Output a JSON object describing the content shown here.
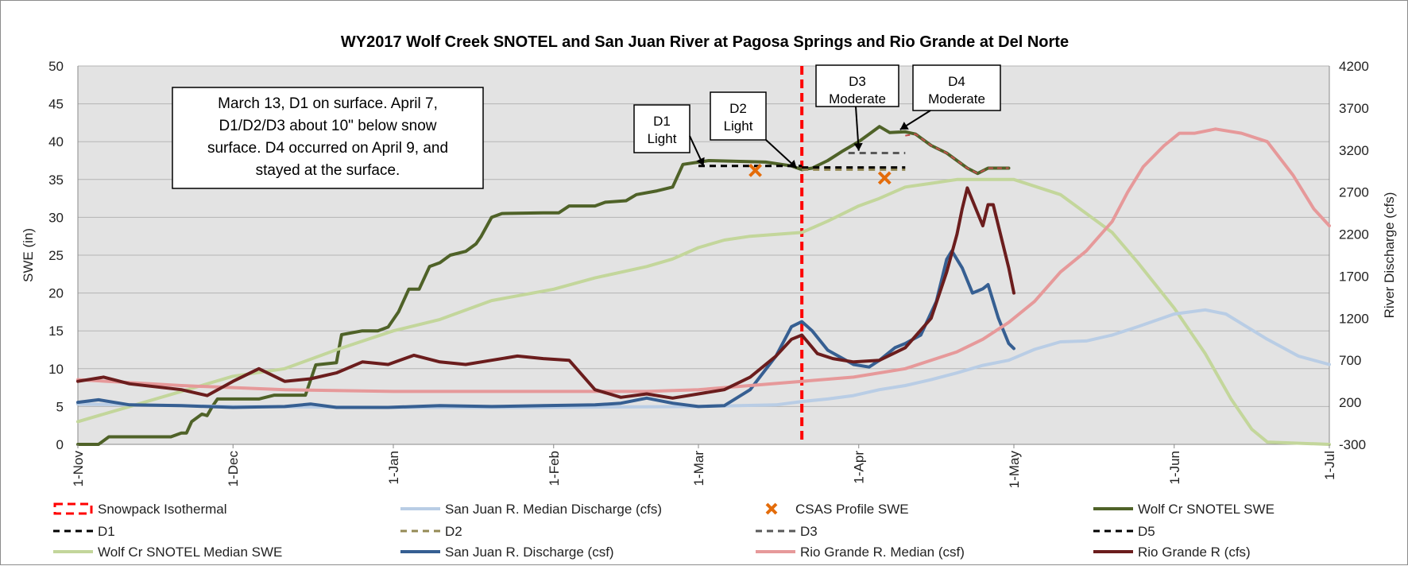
{
  "chart_data": {
    "type": "line",
    "title": "WY2017 Wolf Creek SNOTEL and San Juan River at Pagosa Springs and Rio Grande at Del Norte",
    "ylabel_left": "SWE (in)",
    "ylabel_right": "River Discharge (cfs)",
    "ylim_left": [
      0,
      50
    ],
    "ylim_right": [
      -300,
      4200
    ],
    "yticks_left": [
      "0",
      "5",
      "10",
      "15",
      "20",
      "25",
      "30",
      "35",
      "40",
      "45",
      "50"
    ],
    "yticks_right": [
      "-300",
      "200",
      "700",
      "1200",
      "1700",
      "2200",
      "2700",
      "3200",
      "3700",
      "4200"
    ],
    "x_tick_labels": [
      "1-Nov",
      "1-Dec",
      "1-Jan",
      "1-Feb",
      "1-Mar",
      "1-Apr",
      "1-May",
      "1-Jun",
      "1-Jul"
    ],
    "x_tick_days": [
      0,
      30,
      61,
      92,
      120,
      151,
      181,
      212,
      242
    ],
    "x_range_days": [
      0,
      242
    ],
    "grid": true,
    "isothermal_day": 140,
    "series": [
      {
        "name": "Wolf Cr SNOTEL SWE",
        "axis": "left",
        "color": "#4f6228",
        "width": 4,
        "dash": "",
        "points": [
          [
            0,
            0
          ],
          [
            4,
            0
          ],
          [
            6,
            1
          ],
          [
            10,
            1
          ],
          [
            18,
            1
          ],
          [
            20,
            1.5
          ],
          [
            21,
            1.5
          ],
          [
            22,
            3
          ],
          [
            24,
            4
          ],
          [
            25,
            3.8
          ],
          [
            26,
            5
          ],
          [
            27,
            6
          ],
          [
            35,
            6
          ],
          [
            38,
            6.5
          ],
          [
            44,
            6.5
          ],
          [
            46,
            10.5
          ],
          [
            50,
            10.8
          ],
          [
            51,
            14.5
          ],
          [
            55,
            15
          ],
          [
            58,
            15
          ],
          [
            60,
            15.5
          ],
          [
            62,
            17.5
          ],
          [
            64,
            20.5
          ],
          [
            66,
            20.5
          ],
          [
            68,
            23.5
          ],
          [
            70,
            24
          ],
          [
            72,
            25
          ],
          [
            75,
            25.5
          ],
          [
            77,
            26.5
          ],
          [
            78,
            27.5
          ],
          [
            80,
            30
          ],
          [
            82,
            30.5
          ],
          [
            90,
            30.6
          ],
          [
            93,
            30.6
          ],
          [
            95,
            31.5
          ],
          [
            100,
            31.5
          ],
          [
            102,
            32
          ],
          [
            106,
            32.2
          ],
          [
            108,
            33
          ],
          [
            112,
            33.5
          ],
          [
            115,
            34
          ],
          [
            117,
            37
          ],
          [
            122,
            37.5
          ],
          [
            128,
            37.4
          ],
          [
            133,
            37.3
          ],
          [
            138,
            36.8
          ],
          [
            140,
            36.3
          ],
          [
            142,
            36.5
          ],
          [
            145,
            37.5
          ],
          [
            148,
            38.8
          ],
          [
            151,
            40
          ],
          [
            153,
            41
          ],
          [
            155,
            42
          ],
          [
            157,
            41.2
          ],
          [
            160,
            41.3
          ],
          [
            162,
            41
          ],
          [
            165,
            39.5
          ],
          [
            168,
            38.5
          ],
          [
            170,
            37.5
          ],
          [
            172,
            36.5
          ],
          [
            174,
            35.8
          ],
          [
            176,
            36.5
          ],
          [
            180,
            36.5
          ]
        ]
      },
      {
        "name": "Wolf Cr SNOTEL Median SWE",
        "axis": "left",
        "color": "#c3d69b",
        "width": 4,
        "dash": "",
        "points": [
          [
            0,
            3
          ],
          [
            10,
            5
          ],
          [
            20,
            7
          ],
          [
            30,
            9
          ],
          [
            40,
            10
          ],
          [
            50,
            12.5
          ],
          [
            61,
            15
          ],
          [
            70,
            16.5
          ],
          [
            80,
            19
          ],
          [
            92,
            20.5
          ],
          [
            100,
            22
          ],
          [
            110,
            23.5
          ],
          [
            115,
            24.5
          ],
          [
            120,
            26
          ],
          [
            125,
            27
          ],
          [
            130,
            27.5
          ],
          [
            140,
            28
          ],
          [
            145,
            29.5
          ],
          [
            151,
            31.5
          ],
          [
            155,
            32.5
          ],
          [
            160,
            34
          ],
          [
            165,
            34.5
          ],
          [
            170,
            35
          ],
          [
            175,
            35
          ],
          [
            181,
            35
          ],
          [
            190,
            33
          ],
          [
            200,
            28
          ],
          [
            205,
            24
          ],
          [
            212,
            18
          ],
          [
            218,
            12
          ],
          [
            223,
            6
          ],
          [
            227,
            2
          ],
          [
            230,
            0.3
          ],
          [
            242,
            0
          ]
        ]
      },
      {
        "name": "San Juan R. Median Discharge (cfs)",
        "axis": "right",
        "color": "#b9cde5",
        "width": 4,
        "dash": "",
        "points": [
          [
            0,
            180
          ],
          [
            30,
            150
          ],
          [
            60,
            140
          ],
          [
            90,
            140
          ],
          [
            120,
            150
          ],
          [
            135,
            170
          ],
          [
            140,
            210
          ],
          [
            145,
            240
          ],
          [
            150,
            280
          ],
          [
            155,
            350
          ],
          [
            160,
            400
          ],
          [
            165,
            470
          ],
          [
            170,
            550
          ],
          [
            175,
            640
          ],
          [
            180,
            700
          ],
          [
            185,
            830
          ],
          [
            190,
            920
          ],
          [
            195,
            930
          ],
          [
            200,
            1000
          ],
          [
            205,
            1100
          ],
          [
            212,
            1250
          ],
          [
            218,
            1300
          ],
          [
            222,
            1250
          ],
          [
            226,
            1100
          ],
          [
            230,
            950
          ],
          [
            236,
            750
          ],
          [
            242,
            650
          ]
        ]
      },
      {
        "name": "San Juan R. Discharge (csf)",
        "axis": "right",
        "color": "#365f92",
        "width": 4,
        "dash": "",
        "points": [
          [
            0,
            200
          ],
          [
            4,
            230
          ],
          [
            10,
            170
          ],
          [
            20,
            160
          ],
          [
            30,
            140
          ],
          [
            40,
            150
          ],
          [
            45,
            180
          ],
          [
            50,
            140
          ],
          [
            60,
            140
          ],
          [
            70,
            160
          ],
          [
            80,
            150
          ],
          [
            90,
            160
          ],
          [
            100,
            170
          ],
          [
            105,
            190
          ],
          [
            110,
            250
          ],
          [
            115,
            190
          ],
          [
            120,
            150
          ],
          [
            125,
            160
          ],
          [
            130,
            350
          ],
          [
            135,
            750
          ],
          [
            138,
            1100
          ],
          [
            140,
            1160
          ],
          [
            142,
            1050
          ],
          [
            145,
            820
          ],
          [
            150,
            650
          ],
          [
            153,
            620
          ],
          [
            155,
            700
          ],
          [
            158,
            850
          ],
          [
            160,
            900
          ],
          [
            163,
            1000
          ],
          [
            166,
            1400
          ],
          [
            168,
            1900
          ],
          [
            169,
            2000
          ],
          [
            171,
            1800
          ],
          [
            173,
            1500
          ],
          [
            175,
            1550
          ],
          [
            176,
            1600
          ],
          [
            178,
            1200
          ],
          [
            180,
            900
          ],
          [
            181,
            840
          ]
        ]
      },
      {
        "name": "Rio Grande R. Median (csf)",
        "axis": "right",
        "color": "#e6999a",
        "width": 4,
        "dash": "",
        "points": [
          [
            0,
            470
          ],
          [
            20,
            400
          ],
          [
            40,
            350
          ],
          [
            61,
            330
          ],
          [
            90,
            330
          ],
          [
            110,
            330
          ],
          [
            120,
            350
          ],
          [
            130,
            400
          ],
          [
            140,
            450
          ],
          [
            150,
            500
          ],
          [
            160,
            600
          ],
          [
            170,
            800
          ],
          [
            175,
            950
          ],
          [
            180,
            1150
          ],
          [
            185,
            1400
          ],
          [
            190,
            1750
          ],
          [
            195,
            2000
          ],
          [
            200,
            2350
          ],
          [
            203,
            2700
          ],
          [
            206,
            3000
          ],
          [
            210,
            3250
          ],
          [
            213,
            3400
          ],
          [
            216,
            3400
          ],
          [
            220,
            3450
          ],
          [
            225,
            3400
          ],
          [
            230,
            3300
          ],
          [
            235,
            2900
          ],
          [
            239,
            2500
          ],
          [
            242,
            2300
          ]
        ]
      },
      {
        "name": "Rio Grande R (cfs)",
        "axis": "right",
        "color": "#6b1d1d",
        "width": 4,
        "dash": "",
        "points": [
          [
            0,
            450
          ],
          [
            5,
            500
          ],
          [
            10,
            420
          ],
          [
            20,
            350
          ],
          [
            25,
            280
          ],
          [
            30,
            450
          ],
          [
            35,
            600
          ],
          [
            40,
            450
          ],
          [
            45,
            480
          ],
          [
            50,
            550
          ],
          [
            55,
            680
          ],
          [
            60,
            650
          ],
          [
            65,
            760
          ],
          [
            70,
            680
          ],
          [
            75,
            650
          ],
          [
            80,
            700
          ],
          [
            85,
            750
          ],
          [
            90,
            720
          ],
          [
            95,
            700
          ],
          [
            100,
            350
          ],
          [
            105,
            260
          ],
          [
            110,
            300
          ],
          [
            115,
            250
          ],
          [
            120,
            300
          ],
          [
            125,
            350
          ],
          [
            130,
            500
          ],
          [
            135,
            750
          ],
          [
            138,
            950
          ],
          [
            140,
            1000
          ],
          [
            143,
            780
          ],
          [
            146,
            720
          ],
          [
            150,
            680
          ],
          [
            155,
            700
          ],
          [
            160,
            850
          ],
          [
            165,
            1200
          ],
          [
            168,
            1750
          ],
          [
            170,
            2200
          ],
          [
            171,
            2500
          ],
          [
            172,
            2750
          ],
          [
            174,
            2450
          ],
          [
            175,
            2300
          ],
          [
            176,
            2550
          ],
          [
            177,
            2550
          ],
          [
            178,
            2300
          ],
          [
            180,
            1800
          ],
          [
            181,
            1500
          ]
        ]
      },
      {
        "name": "D1",
        "axis": "left",
        "color": "#000000",
        "width": 3,
        "dash": "8,6",
        "points": [
          [
            120,
            36.8
          ],
          [
            140,
            36.8
          ]
        ]
      },
      {
        "name": "D2",
        "axis": "left",
        "color": "#948a54",
        "width": 3,
        "dash": "8,6",
        "points": [
          [
            140,
            36.3
          ],
          [
            160,
            36.3
          ]
        ]
      },
      {
        "name": "D3",
        "axis": "left",
        "color": "#595959",
        "width": 3,
        "dash": "8,6",
        "points": [
          [
            149,
            38.5
          ],
          [
            160,
            38.5
          ]
        ]
      },
      {
        "name": "D5",
        "axis": "left",
        "color": "#000000",
        "width": 3,
        "dash": "8,6",
        "points": [
          [
            140,
            36.6
          ],
          [
            160,
            36.6
          ]
        ]
      },
      {
        "name": "D4",
        "axis": "left",
        "color": "#c0504d",
        "width": 2,
        "dash": "6,5",
        "points": [
          [
            160,
            40.8
          ],
          [
            162,
            41
          ],
          [
            165,
            39.5
          ],
          [
            168,
            38.5
          ],
          [
            170,
            37.5
          ],
          [
            172,
            36.5
          ],
          [
            174,
            35.8
          ],
          [
            176,
            36.5
          ],
          [
            180,
            36.5
          ]
        ]
      }
    ],
    "csas_points": [
      [
        131,
        36.2
      ],
      [
        156,
        35.2
      ]
    ],
    "annotations": {
      "big_box": [
        "March 13, D1 on surface.  April 7,",
        "D1/D2/D3 about 10\" below snow",
        "surface.  D4 occurred on April 9, and",
        "stayed at the surface."
      ],
      "d1": [
        "D1",
        "Light"
      ],
      "d2": [
        "D2",
        "Light"
      ],
      "d3": [
        "D3",
        "Moderate"
      ],
      "d4": [
        "D4",
        "Moderate"
      ]
    },
    "legend": [
      {
        "label": "Snowpack Isothermal",
        "style": "isothermal"
      },
      {
        "label": "San Juan R. Median Discharge (cfs)",
        "style": "line",
        "color": "#b9cde5"
      },
      {
        "label": "CSAS Profile SWE",
        "style": "x",
        "color": "#e46c0a"
      },
      {
        "label": "Wolf Cr SNOTEL SWE",
        "style": "line",
        "color": "#4f6228"
      },
      {
        "label": "D1",
        "style": "dash",
        "color": "#000000"
      },
      {
        "label": "D2",
        "style": "dash",
        "color": "#948a54"
      },
      {
        "label": "D3",
        "style": "dash",
        "color": "#595959"
      },
      {
        "label": "D5",
        "style": "dash",
        "color": "#000000"
      },
      {
        "label": "Wolf Cr SNOTEL Median SWE",
        "style": "line",
        "color": "#c3d69b"
      },
      {
        "label": "San Juan R. Discharge (csf)",
        "style": "line",
        "color": "#365f92"
      },
      {
        "label": "Rio Grande R. Median (csf)",
        "style": "line",
        "color": "#e6999a"
      },
      {
        "label": "Rio Grande R (cfs)",
        "style": "line",
        "color": "#6b1d1d"
      }
    ],
    "colors": {
      "plot_bg": "#e3e3e3",
      "grid": "#b5b5b5",
      "isothermal": "#ff0000",
      "csas": "#e46c0a"
    }
  }
}
